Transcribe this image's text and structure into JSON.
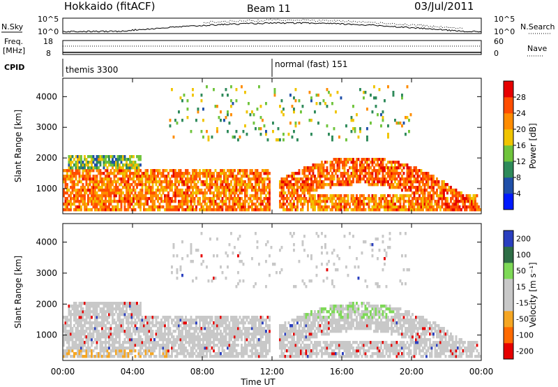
{
  "header": {
    "station": "Hokkaido (fitACF)",
    "beam": "Beam 11",
    "date": "03/Jul/2011"
  },
  "noise_panel": {
    "left_label": "N.Sky",
    "right_label": "N.Search",
    "tick_top_left": "10^5",
    "tick_bottom_left": "10^0",
    "tick_top_right": "10^5",
    "tick_bottom_right": "10^0"
  },
  "freq_panel": {
    "left_label_line1": "Freq.",
    "left_label_line2": "[MHz]",
    "right_label": "Nave",
    "tick_top_left": "18",
    "tick_bottom_left": "8",
    "tick_top_right": "60",
    "tick_bottom_right": "0"
  },
  "cpid": {
    "label": "CPID",
    "segments": [
      {
        "start_hour": 0,
        "text": "themis 3300"
      },
      {
        "start_hour": 12,
        "text": "normal (fast) 151"
      }
    ]
  },
  "x_axis": {
    "label": "Time UT",
    "ticks": [
      "00:00",
      "04:00",
      "08:00",
      "12:00",
      "16:00",
      "20:00",
      "00:00"
    ],
    "tick_hours": [
      0,
      4,
      8,
      12,
      16,
      20,
      24
    ]
  },
  "chart_data": [
    {
      "type": "heatmap",
      "quantity": "power",
      "ylabel": "Slant Range [km]",
      "yticks": [
        "1000",
        "2000",
        "3000",
        "4000"
      ],
      "ytick_values": [
        1000,
        2000,
        3000,
        4000
      ],
      "ylim": [
        180,
        4600
      ],
      "xlim_hours": [
        0,
        24
      ],
      "colorbar": {
        "label": "Power [dB]",
        "ticks": [
          "4",
          "8",
          "12",
          "16",
          "20",
          "24",
          "28"
        ],
        "range": [
          0,
          32
        ],
        "colors": [
          "#0019ff",
          "#1f4fa8",
          "#2e8a5a",
          "#6fc43c",
          "#f0c400",
          "#ff8c00",
          "#ff4d00",
          "#e60000"
        ]
      },
      "echo_features": [
        {
          "name": "near-range band morning",
          "t": [
            0,
            11.5
          ],
          "range_km": [
            250,
            1500
          ],
          "level": "high"
        },
        {
          "name": "afternoon arc",
          "t": [
            12.5,
            24
          ],
          "range_km": [
            300,
            2000
          ],
          "level": "high"
        },
        {
          "name": "far-range patches",
          "t": [
            6,
            20
          ],
          "range_km": [
            2500,
            4300
          ],
          "level": "medium"
        }
      ]
    },
    {
      "type": "heatmap",
      "quantity": "velocity",
      "ylabel": "Slant Range [km]",
      "yticks": [
        "1000",
        "2000",
        "3000",
        "4000"
      ],
      "ytick_values": [
        1000,
        2000,
        3000,
        4000
      ],
      "ylim": [
        180,
        4600
      ],
      "xlim_hours": [
        0,
        24
      ],
      "colorbar": {
        "label": "Velocity [m s⁻¹]",
        "ticks": [
          "200",
          "100",
          "50",
          "15",
          "-15",
          "-50",
          "-100",
          "-200"
        ],
        "colors": [
          "#2a3fbf",
          "#2e6e46",
          "#7ed957",
          "#c8c8c8",
          "#c8c8c8",
          "#f5a623",
          "#ff6a00",
          "#e60000"
        ]
      }
    }
  ]
}
